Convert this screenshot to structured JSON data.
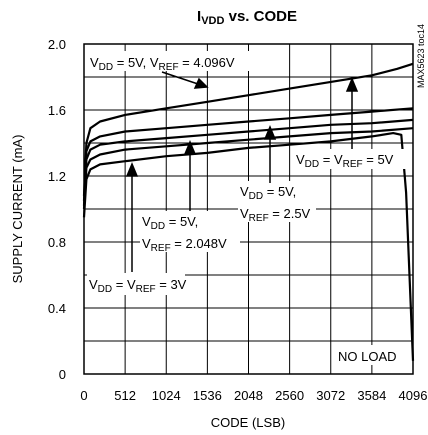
{
  "chart_data": {
    "type": "line",
    "title": {
      "main": "I",
      "sub": "VDD",
      "rest": " vs. CODE"
    },
    "part_id": "MAX5623 toc14",
    "xlabel": "CODE (LSB)",
    "ylabel": "SUPPLY CURRENT (mA)",
    "xlim": [
      0,
      4096
    ],
    "ylim": [
      0,
      2.0
    ],
    "x_ticks": [
      0,
      512,
      1024,
      1536,
      2048,
      2560,
      3072,
      3584,
      4096
    ],
    "y_ticks": [
      "0",
      "0.4",
      "0.8",
      "1.2",
      "1.6",
      "2.0"
    ],
    "grid": true,
    "series": [
      {
        "x": [
          0,
          30,
          80,
          200,
          512,
          1024,
          1536,
          2048,
          2560,
          3072,
          3584,
          3900,
          4096
        ],
        "y": [
          1.08,
          1.4,
          1.49,
          1.53,
          1.57,
          1.61,
          1.65,
          1.69,
          1.73,
          1.77,
          1.81,
          1.85,
          1.88
        ]
      },
      {
        "x": [
          0,
          30,
          80,
          200,
          512,
          1024,
          1536,
          2048,
          2560,
          3072,
          3584,
          4096
        ],
        "y": [
          1.05,
          1.35,
          1.41,
          1.44,
          1.47,
          1.49,
          1.51,
          1.53,
          1.55,
          1.57,
          1.59,
          1.61
        ]
      },
      {
        "x": [
          0,
          30,
          80,
          200,
          512,
          1024,
          1536,
          2048,
          2560,
          3072,
          3584,
          4096
        ],
        "y": [
          1.02,
          1.3,
          1.36,
          1.39,
          1.41,
          1.43,
          1.45,
          1.47,
          1.49,
          1.51,
          1.52,
          1.54
        ]
      },
      {
        "x": [
          0,
          30,
          80,
          200,
          512,
          1024,
          1536,
          2048,
          2560,
          3072,
          3584,
          4096
        ],
        "y": [
          1.0,
          1.25,
          1.3,
          1.33,
          1.36,
          1.38,
          1.4,
          1.42,
          1.44,
          1.46,
          1.47,
          1.49
        ]
      },
      {
        "x": [
          0,
          30,
          80,
          200,
          512,
          1024,
          1536,
          2048,
          2560,
          3072,
          3584,
          3850,
          3950,
          4010,
          4096
        ],
        "y": [
          0.95,
          1.18,
          1.24,
          1.27,
          1.29,
          1.32,
          1.34,
          1.37,
          1.39,
          1.41,
          1.44,
          1.46,
          1.45,
          1.1,
          0.08
        ]
      }
    ],
    "annotations": [
      {
        "id": "a1",
        "parts": [
          [
            "n",
            "V"
          ],
          [
            "s",
            "DD"
          ],
          [
            "n",
            " = 5V, V"
          ],
          [
            "s",
            "REF"
          ],
          [
            "n",
            " = 4.096V"
          ]
        ]
      },
      {
        "id": "a2",
        "parts": [
          [
            "n",
            "V"
          ],
          [
            "s",
            "DD"
          ],
          [
            "n",
            " = V"
          ],
          [
            "s",
            "REF"
          ],
          [
            "n",
            " = 5V"
          ]
        ]
      },
      {
        "id": "a3a",
        "parts": [
          [
            "n",
            "V"
          ],
          [
            "s",
            "DD"
          ],
          [
            "n",
            " = 5V,"
          ]
        ]
      },
      {
        "id": "a3b",
        "parts": [
          [
            "n",
            "V"
          ],
          [
            "s",
            "REF"
          ],
          [
            "n",
            " = 2.5V"
          ]
        ]
      },
      {
        "id": "a4a",
        "parts": [
          [
            "n",
            "V"
          ],
          [
            "s",
            "DD"
          ],
          [
            "n",
            " = 5V,"
          ]
        ]
      },
      {
        "id": "a4b",
        "parts": [
          [
            "n",
            "V"
          ],
          [
            "s",
            "REF"
          ],
          [
            "n",
            " = 2.048V"
          ]
        ]
      },
      {
        "id": "a5",
        "parts": [
          [
            "n",
            "V"
          ],
          [
            "s",
            "DD"
          ],
          [
            "n",
            " = V"
          ],
          [
            "s",
            "REF"
          ],
          [
            "n",
            " = 3V"
          ]
        ]
      },
      {
        "id": "a6",
        "parts": [
          [
            "n",
            "NO LOAD"
          ]
        ]
      }
    ],
    "colors": {
      "line": "#000000",
      "grid": "#000000",
      "background": "#ffffff"
    }
  }
}
